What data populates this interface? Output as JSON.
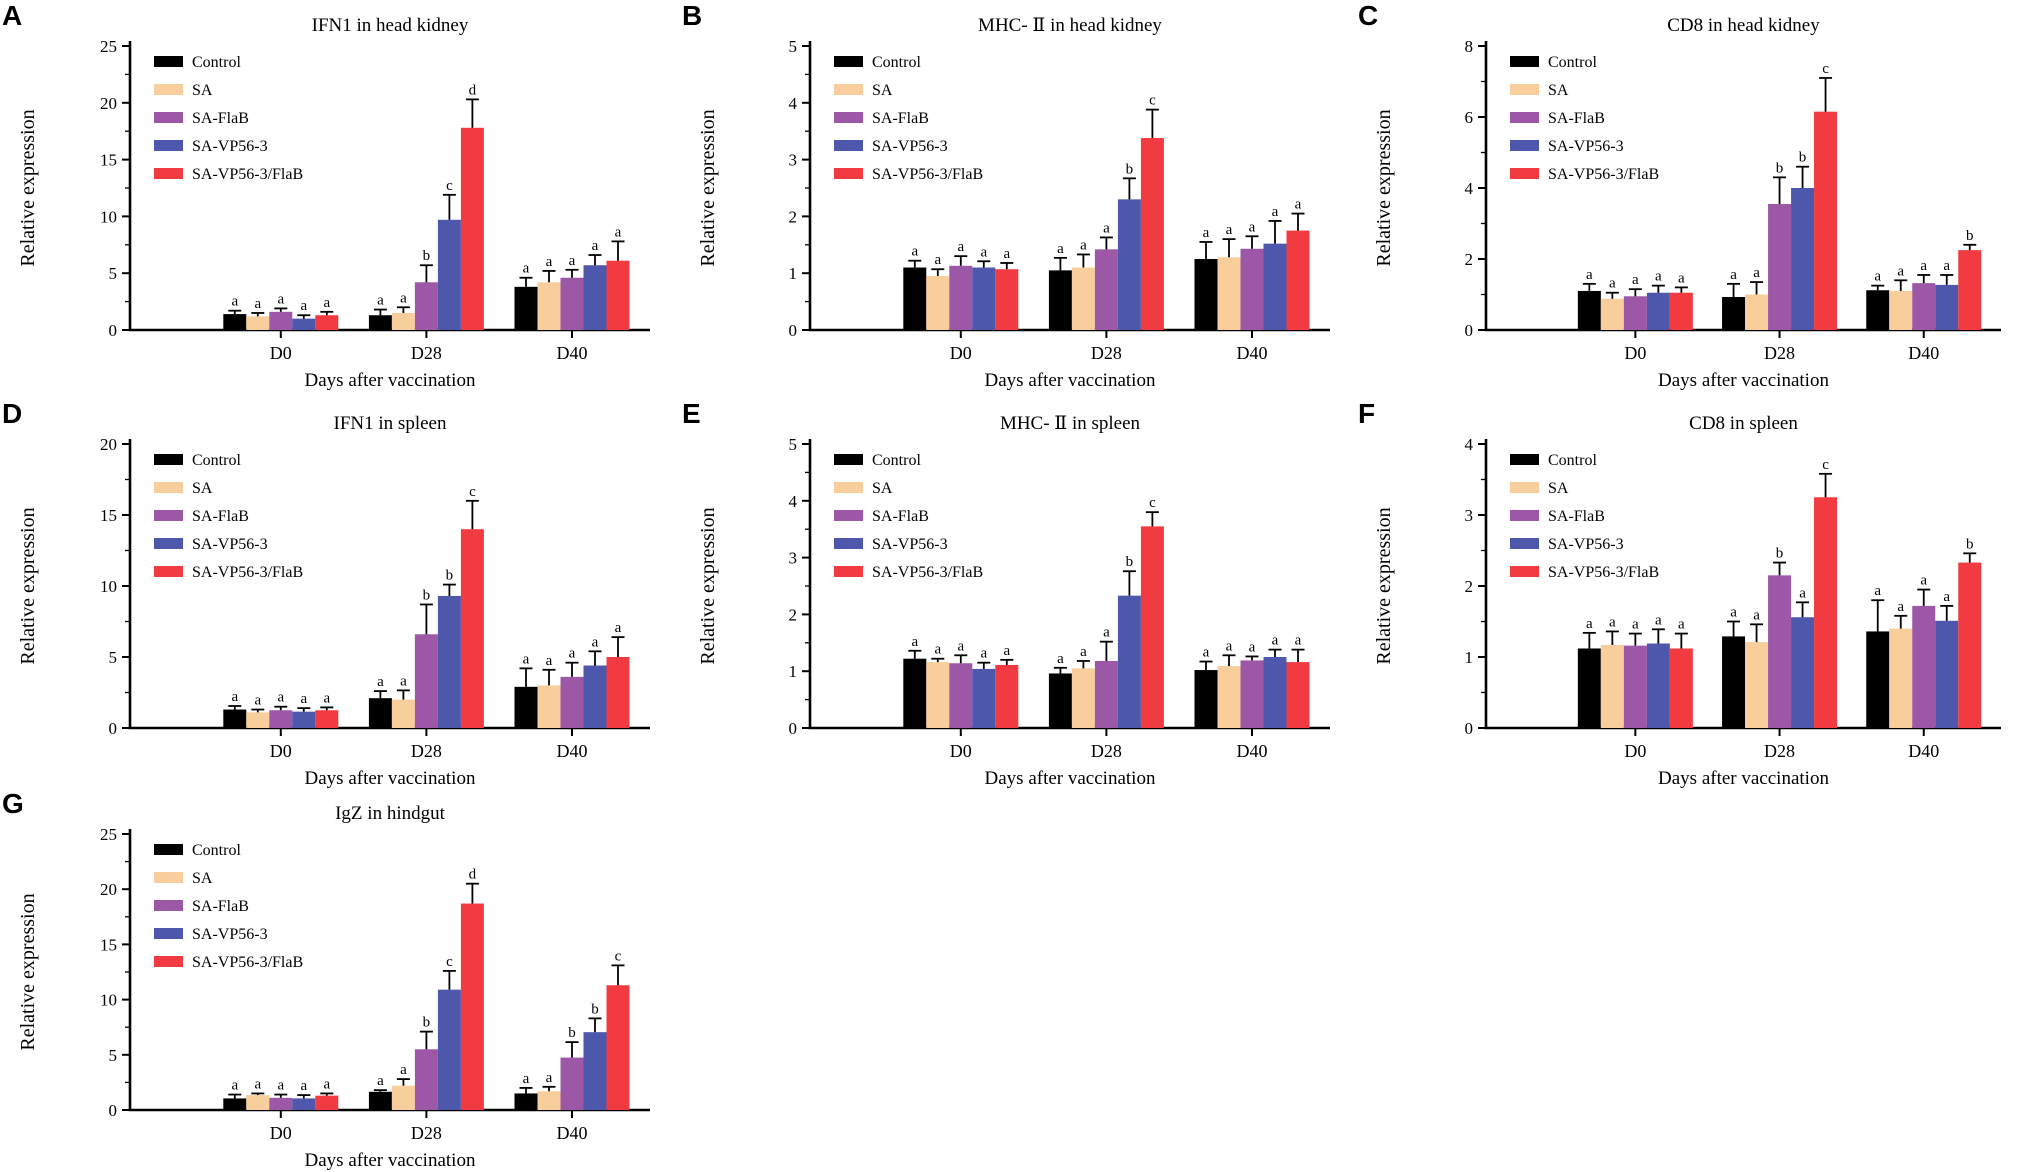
{
  "figure": {
    "ylabel": "Relative expression",
    "xlabel": "Days after vaccination",
    "categories": [
      "D0",
      "D28",
      "D40"
    ],
    "legend": [
      {
        "label": "Control",
        "color": "#000000"
      },
      {
        "label": "SA",
        "color": "#F8CE9C"
      },
      {
        "label": "SA-FlaB",
        "color": "#9C57A7"
      },
      {
        "label": "SA-VP56-3",
        "color": "#4D57AC"
      },
      {
        "label": "SA-VP56-3/FlaB",
        "color": "#F23B40"
      }
    ]
  },
  "chart_data": [
    {
      "type": "bar",
      "panel": "A",
      "title": "IFN1 in head kidney",
      "ylabel": "Relative expression",
      "xlabel": "Days after vaccination",
      "categories": [
        "D0",
        "D28",
        "D40"
      ],
      "ylim": [
        0,
        25
      ],
      "yticks": [
        0,
        5,
        10,
        15,
        20,
        25
      ],
      "grid": false,
      "legend_position": "upper-left",
      "series": [
        {
          "name": "Control",
          "values": [
            1.4,
            1.3,
            3.8
          ],
          "errors": [
            0.3,
            0.5,
            0.8
          ],
          "letters": [
            "a",
            "a",
            "a"
          ]
        },
        {
          "name": "SA",
          "values": [
            1.2,
            1.5,
            4.2
          ],
          "errors": [
            0.3,
            0.5,
            1.0
          ],
          "letters": [
            "a",
            "a",
            "a"
          ]
        },
        {
          "name": "SA-FlaB",
          "values": [
            1.6,
            4.2,
            4.6
          ],
          "errors": [
            0.3,
            1.5,
            0.7
          ],
          "letters": [
            "a",
            "b",
            "a"
          ]
        },
        {
          "name": "SA-VP56-3",
          "values": [
            1.0,
            9.7,
            5.7
          ],
          "errors": [
            0.3,
            2.2,
            0.9
          ],
          "letters": [
            "a",
            "c",
            "a"
          ]
        },
        {
          "name": "SA-VP56-3/FlaB",
          "values": [
            1.3,
            17.8,
            6.1
          ],
          "errors": [
            0.3,
            2.5,
            1.7
          ],
          "letters": [
            "a",
            "d",
            "a"
          ]
        }
      ]
    },
    {
      "type": "bar",
      "panel": "B",
      "title": "MHC- Ⅱ in head kidney",
      "ylabel": "Relative expression",
      "xlabel": "Days after vaccination",
      "categories": [
        "D0",
        "D28",
        "D40"
      ],
      "ylim": [
        0,
        5
      ],
      "yticks": [
        0,
        1,
        2,
        3,
        4,
        5
      ],
      "grid": false,
      "legend_position": "upper-left",
      "series": [
        {
          "name": "Control",
          "values": [
            1.1,
            1.05,
            1.25
          ],
          "errors": [
            0.12,
            0.22,
            0.3
          ],
          "letters": [
            "a",
            "a",
            "a"
          ]
        },
        {
          "name": "SA",
          "values": [
            0.95,
            1.1,
            1.28
          ],
          "errors": [
            0.12,
            0.23,
            0.32
          ],
          "letters": [
            "a",
            "a",
            "a"
          ]
        },
        {
          "name": "SA-FlaB",
          "values": [
            1.13,
            1.42,
            1.43
          ],
          "errors": [
            0.17,
            0.21,
            0.22
          ],
          "letters": [
            "a",
            "a",
            "a"
          ]
        },
        {
          "name": "SA-VP56-3",
          "values": [
            1.1,
            2.3,
            1.52
          ],
          "errors": [
            0.11,
            0.37,
            0.4
          ],
          "letters": [
            "a",
            "b",
            "a"
          ]
        },
        {
          "name": "SA-VP56-3/FlaB",
          "values": [
            1.07,
            3.38,
            1.75
          ],
          "errors": [
            0.11,
            0.5,
            0.3
          ],
          "letters": [
            "a",
            "c",
            "a"
          ]
        }
      ]
    },
    {
      "type": "bar",
      "panel": "C",
      "title": "CD8 in head kidney",
      "ylabel": "Relative expression",
      "xlabel": "Days after vaccination",
      "categories": [
        "D0",
        "D28",
        "D40"
      ],
      "ylim": [
        0,
        8
      ],
      "yticks": [
        0,
        2,
        4,
        6,
        8
      ],
      "grid": false,
      "legend_position": "upper-left",
      "series": [
        {
          "name": "Control",
          "values": [
            1.1,
            0.93,
            1.12
          ],
          "errors": [
            0.2,
            0.37,
            0.13
          ],
          "letters": [
            "a",
            "a",
            "a"
          ]
        },
        {
          "name": "SA",
          "values": [
            0.88,
            1.0,
            1.1
          ],
          "errors": [
            0.17,
            0.35,
            0.3
          ],
          "letters": [
            "a",
            "a",
            "a"
          ]
        },
        {
          "name": "SA-FlaB",
          "values": [
            0.95,
            3.55,
            1.32
          ],
          "errors": [
            0.2,
            0.75,
            0.23
          ],
          "letters": [
            "a",
            "b",
            "a"
          ]
        },
        {
          "name": "SA-VP56-3",
          "values": [
            1.05,
            4.0,
            1.27
          ],
          "errors": [
            0.2,
            0.6,
            0.28
          ],
          "letters": [
            "a",
            "b",
            "a"
          ]
        },
        {
          "name": "SA-VP56-3/FlaB",
          "values": [
            1.05,
            6.15,
            2.25
          ],
          "errors": [
            0.15,
            0.95,
            0.15
          ],
          "letters": [
            "a",
            "c",
            "b"
          ]
        }
      ]
    },
    {
      "type": "bar",
      "panel": "D",
      "title": "IFN1 in spleen",
      "ylabel": "Relative expression",
      "xlabel": "Days after vaccination",
      "categories": [
        "D0",
        "D28",
        "D40"
      ],
      "ylim": [
        0,
        20
      ],
      "yticks": [
        0,
        5,
        10,
        15,
        20
      ],
      "grid": false,
      "legend_position": "upper-left",
      "series": [
        {
          "name": "Control",
          "values": [
            1.3,
            2.1,
            2.9
          ],
          "errors": [
            0.25,
            0.5,
            1.3
          ],
          "letters": [
            "a",
            "a",
            "a"
          ]
        },
        {
          "name": "SA",
          "values": [
            1.1,
            2.0,
            3.0
          ],
          "errors": [
            0.2,
            0.65,
            1.1
          ],
          "letters": [
            "a",
            "a",
            "a"
          ]
        },
        {
          "name": "SA-FlaB",
          "values": [
            1.25,
            6.6,
            3.6
          ],
          "errors": [
            0.25,
            2.1,
            1.0
          ],
          "letters": [
            "a",
            "b",
            "a"
          ]
        },
        {
          "name": "SA-VP56-3",
          "values": [
            1.15,
            9.3,
            4.4
          ],
          "errors": [
            0.25,
            0.8,
            1.0
          ],
          "letters": [
            "a",
            "b",
            "a"
          ]
        },
        {
          "name": "SA-VP56-3/FlaB",
          "values": [
            1.25,
            14.0,
            5.0
          ],
          "errors": [
            0.2,
            2.0,
            1.4
          ],
          "letters": [
            "a",
            "c",
            "a"
          ]
        }
      ]
    },
    {
      "type": "bar",
      "panel": "E",
      "title": "MHC- Ⅱ in spleen",
      "ylabel": "Relative expression",
      "xlabel": "Days after vaccination",
      "categories": [
        "D0",
        "D28",
        "D40"
      ],
      "ylim": [
        0,
        5
      ],
      "yticks": [
        0,
        1,
        2,
        3,
        4,
        5
      ],
      "grid": false,
      "legend_position": "upper-left",
      "series": [
        {
          "name": "Control",
          "values": [
            1.22,
            0.96,
            1.02
          ],
          "errors": [
            0.14,
            0.1,
            0.15
          ],
          "letters": [
            "a",
            "a",
            "a"
          ]
        },
        {
          "name": "SA",
          "values": [
            1.16,
            1.05,
            1.09
          ],
          "errors": [
            0.06,
            0.13,
            0.19
          ],
          "letters": [
            "a",
            "a",
            "a"
          ]
        },
        {
          "name": "SA-FlaB",
          "values": [
            1.14,
            1.18,
            1.19
          ],
          "errors": [
            0.14,
            0.34,
            0.07
          ],
          "letters": [
            "a",
            "a",
            "a"
          ]
        },
        {
          "name": "SA-VP56-3",
          "values": [
            1.04,
            2.33,
            1.25
          ],
          "errors": [
            0.11,
            0.43,
            0.13
          ],
          "letters": [
            "a",
            "b",
            "a"
          ]
        },
        {
          "name": "SA-VP56-3/FlaB",
          "values": [
            1.11,
            3.55,
            1.16
          ],
          "errors": [
            0.09,
            0.25,
            0.22
          ],
          "letters": [
            "a",
            "c",
            "a"
          ]
        }
      ]
    },
    {
      "type": "bar",
      "panel": "F",
      "title": "CD8 in spleen",
      "ylabel": "Relative expression",
      "xlabel": "Days after vaccination",
      "categories": [
        "D0",
        "D28",
        "D40"
      ],
      "ylim": [
        0,
        4
      ],
      "yticks": [
        0,
        1,
        2,
        3,
        4
      ],
      "grid": false,
      "legend_position": "upper-left",
      "series": [
        {
          "name": "Control",
          "values": [
            1.12,
            1.29,
            1.36
          ],
          "errors": [
            0.22,
            0.21,
            0.44
          ],
          "letters": [
            "a",
            "a",
            "a"
          ]
        },
        {
          "name": "SA",
          "values": [
            1.17,
            1.21,
            1.4
          ],
          "errors": [
            0.19,
            0.25,
            0.18
          ],
          "letters": [
            "a",
            "a",
            "a"
          ]
        },
        {
          "name": "SA-FlaB",
          "values": [
            1.16,
            2.15,
            1.72
          ],
          "errors": [
            0.17,
            0.18,
            0.23
          ],
          "letters": [
            "a",
            "b",
            "a"
          ]
        },
        {
          "name": "SA-VP56-3",
          "values": [
            1.19,
            1.56,
            1.51
          ],
          "errors": [
            0.2,
            0.21,
            0.21
          ],
          "letters": [
            "a",
            "a",
            "a"
          ]
        },
        {
          "name": "SA-VP56-3/FlaB",
          "values": [
            1.12,
            3.25,
            2.33
          ],
          "errors": [
            0.21,
            0.33,
            0.13
          ],
          "letters": [
            "a",
            "c",
            "b"
          ]
        }
      ]
    },
    {
      "type": "bar",
      "panel": "G",
      "title": "IgZ in hindgut",
      "ylabel": "Relative expression",
      "xlabel": "Days after vaccination",
      "categories": [
        "D0",
        "D28",
        "D40"
      ],
      "ylim": [
        0,
        25
      ],
      "yticks": [
        0,
        5,
        10,
        15,
        20,
        25
      ],
      "grid": false,
      "legend_position": "upper-left",
      "series": [
        {
          "name": "Control",
          "values": [
            1.05,
            1.65,
            1.5
          ],
          "errors": [
            0.35,
            0.15,
            0.5
          ],
          "letters": [
            "a",
            "a",
            "a"
          ]
        },
        {
          "name": "SA",
          "values": [
            1.35,
            2.2,
            1.7
          ],
          "errors": [
            0.15,
            0.6,
            0.4
          ],
          "letters": [
            "a",
            "a",
            "a"
          ]
        },
        {
          "name": "SA-FlaB",
          "values": [
            1.1,
            5.5,
            4.75
          ],
          "errors": [
            0.3,
            1.6,
            1.4
          ],
          "letters": [
            "a",
            "b",
            "b"
          ]
        },
        {
          "name": "SA-VP56-3",
          "values": [
            1.05,
            10.9,
            7.05
          ],
          "errors": [
            0.3,
            1.7,
            1.25
          ],
          "letters": [
            "a",
            "c",
            "b"
          ]
        },
        {
          "name": "SA-VP56-3/FlaB",
          "values": [
            1.3,
            18.7,
            11.3
          ],
          "errors": [
            0.2,
            1.8,
            1.8
          ],
          "letters": [
            "a",
            "d",
            "c"
          ]
        }
      ]
    }
  ]
}
